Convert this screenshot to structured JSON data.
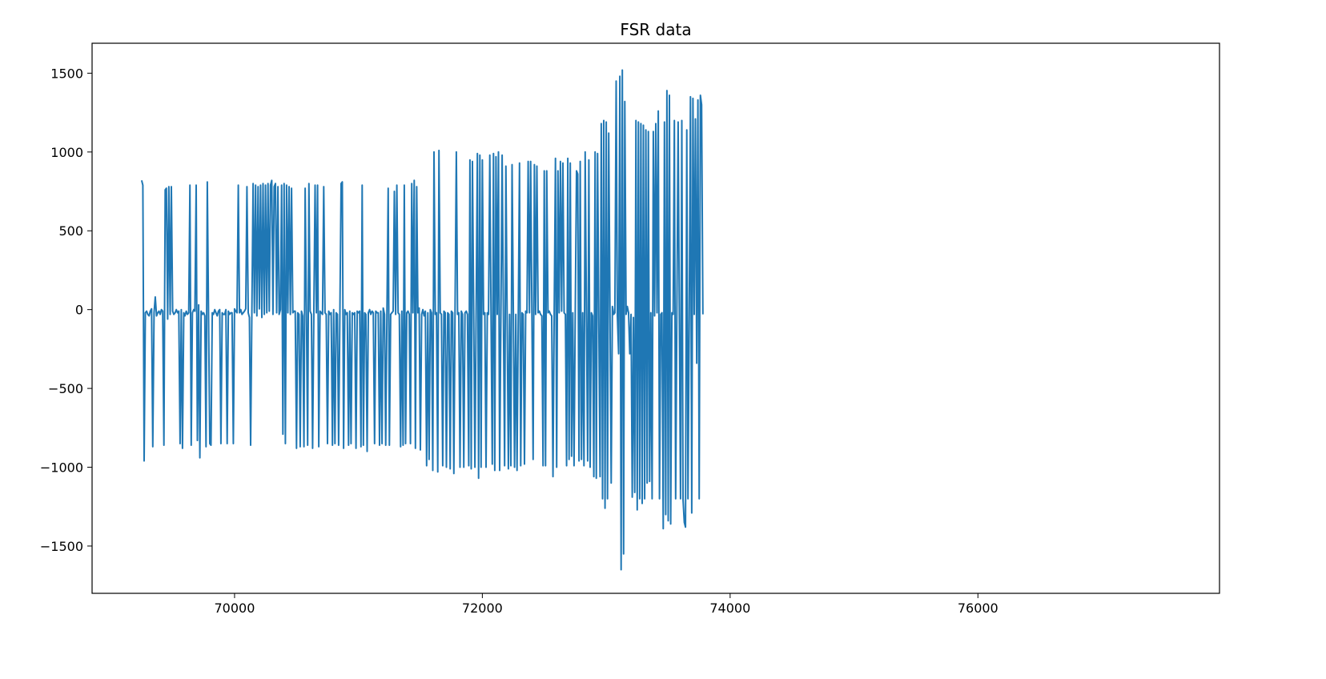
{
  "chart_data": {
    "type": "line",
    "title": "FSR data",
    "xlabel": "",
    "ylabel": "",
    "xlim": [
      68850,
      77950
    ],
    "ylim": [
      -1800,
      1690
    ],
    "x_ticks": [
      70000,
      72000,
      74000,
      76000
    ],
    "y_ticks": [
      1500,
      1000,
      500,
      0,
      -500,
      -1000,
      -1500
    ],
    "x_tick_labels": [
      "70000",
      "72000",
      "74000",
      76000
    ],
    "y_tick_labels": [
      "1500",
      "1000",
      "500",
      "0",
      "−500",
      "−1000",
      "−1500"
    ],
    "grid": false,
    "series": [
      {
        "name": "FSR",
        "color": "#1f77b4",
        "x_start": 69250,
        "x_step": 10,
        "values": [
          820,
          790,
          -960,
          -20,
          -10,
          -30,
          -40,
          -10,
          5,
          -870,
          -20,
          80,
          -40,
          -20,
          -10,
          -30,
          0,
          -10,
          -860,
          760,
          770,
          -60,
          780,
          -30,
          780,
          -10,
          -30,
          -20,
          0,
          -20,
          -10,
          -850,
          0,
          -880,
          -20,
          -40,
          -10,
          -30,
          -20,
          790,
          -860,
          -20,
          0,
          -10,
          790,
          -830,
          30,
          -940,
          -10,
          -30,
          -20,
          -40,
          -870,
          810,
          -20,
          -850,
          -860,
          -20,
          -30,
          0,
          -20,
          -40,
          -10,
          0,
          -850,
          -20,
          -30,
          -30,
          0,
          -850,
          -10,
          -30,
          -20,
          -20,
          -850,
          5,
          -10,
          -20,
          790,
          -20,
          0,
          -30,
          -20,
          -10,
          5,
          780,
          -20,
          -50,
          -860,
          10,
          800,
          -20,
          790,
          -40,
          780,
          5,
          790,
          -50,
          800,
          -30,
          790,
          -20,
          800,
          -10,
          790,
          820,
          -30,
          780,
          800,
          -20,
          780,
          -30,
          0,
          790,
          -790,
          800,
          -850,
          790,
          -20,
          780,
          -30,
          770,
          -20,
          -10,
          -10,
          -880,
          -20,
          -30,
          -870,
          -10,
          -40,
          -870,
          770,
          -20,
          -860,
          800,
          -10,
          -30,
          -880,
          10,
          790,
          -20,
          790,
          -870,
          -10,
          -20,
          -30,
          780,
          -20,
          -30,
          -850,
          -10,
          -30,
          -20,
          -860,
          0,
          -850,
          -20,
          -30,
          -860,
          -10,
          800,
          810,
          -880,
          0,
          -30,
          -20,
          -860,
          -10,
          -850,
          -20,
          -30,
          -20,
          -880,
          -10,
          -20,
          -10,
          -870,
          790,
          -860,
          -20,
          -30,
          -900,
          -20,
          0,
          -30,
          -10,
          -20,
          -850,
          -10,
          -20,
          -20,
          -860,
          -10,
          -850,
          10,
          -30,
          -860,
          -40,
          770,
          -860,
          -30,
          -20,
          -10,
          750,
          -30,
          790,
          -20,
          -30,
          -870,
          -10,
          -860,
          790,
          -850,
          -20,
          -10,
          -30,
          -850,
          800,
          -20,
          820,
          -880,
          780,
          -20,
          10,
          -890,
          -30,
          0,
          -40,
          -10,
          -990,
          -20,
          -950,
          0,
          -20,
          -1020,
          1000,
          -30,
          -20,
          -1030,
          1010,
          -20,
          -30,
          -990,
          -10,
          -20,
          -1000,
          -20,
          -30,
          -1010,
          -10,
          -20,
          -1040,
          0,
          1000,
          -30,
          -20,
          -1000,
          -10,
          -30,
          -1000,
          -20,
          -10,
          -30,
          -990,
          950,
          -1010,
          940,
          -20,
          -1000,
          -30,
          990,
          -1070,
          980,
          -1000,
          950,
          -30,
          -20,
          -1000,
          -20,
          -30,
          980,
          -10,
          -980,
          990,
          -1020,
          970,
          -30,
          1000,
          -1020,
          -10,
          980,
          -40,
          -990,
          910,
          -10,
          -1010,
          -30,
          -990,
          920,
          -20,
          -1000,
          -30,
          -1020,
          -20,
          930,
          -990,
          -20,
          -30,
          -980,
          -10,
          -20,
          940,
          -20,
          940,
          -30,
          -950,
          920,
          -30,
          910,
          -20,
          -10,
          -30,
          -40,
          -990,
          880,
          -990,
          880,
          -20,
          -10,
          -30,
          -40,
          -1060,
          -20,
          960,
          -1000,
          880,
          -20,
          940,
          -10,
          930,
          -20,
          -30,
          -990,
          960,
          -950,
          930,
          -930,
          -20,
          -990,
          -30,
          880,
          860,
          -960,
          940,
          -950,
          -20,
          -990,
          1000,
          -30,
          -960,
          950,
          -1000,
          -20,
          -40,
          -1060,
          1000,
          -1070,
          990,
          -40,
          -1060,
          1180,
          -1200,
          1200,
          -1260,
          1190,
          -1200,
          1120,
          -20,
          -1100,
          20,
          -30,
          -20,
          1450,
          -40,
          -280,
          1480,
          -1650,
          1520,
          -1550,
          1320,
          -30,
          20,
          -20,
          -280,
          -30,
          -1190,
          -50,
          -1160,
          1200,
          -1270,
          1190,
          -1200,
          1180,
          -1230,
          1170,
          -1200,
          1140,
          -1100,
          1130,
          -1090,
          -20,
          -1200,
          1130,
          -40,
          1180,
          -20,
          1260,
          -1200,
          -30,
          -20,
          -1390,
          1190,
          -1300,
          1390,
          -1340,
          1360,
          -1360,
          -20,
          -30,
          1200,
          -1200,
          -20,
          1190,
          -30,
          -1200,
          1200,
          -1200,
          -1350,
          -1380,
          1140,
          -1200,
          -30,
          1350,
          -1290,
          1340,
          -30,
          1210,
          -340,
          1330,
          -1200,
          1360,
          1300,
          -30
        ]
      }
    ]
  }
}
